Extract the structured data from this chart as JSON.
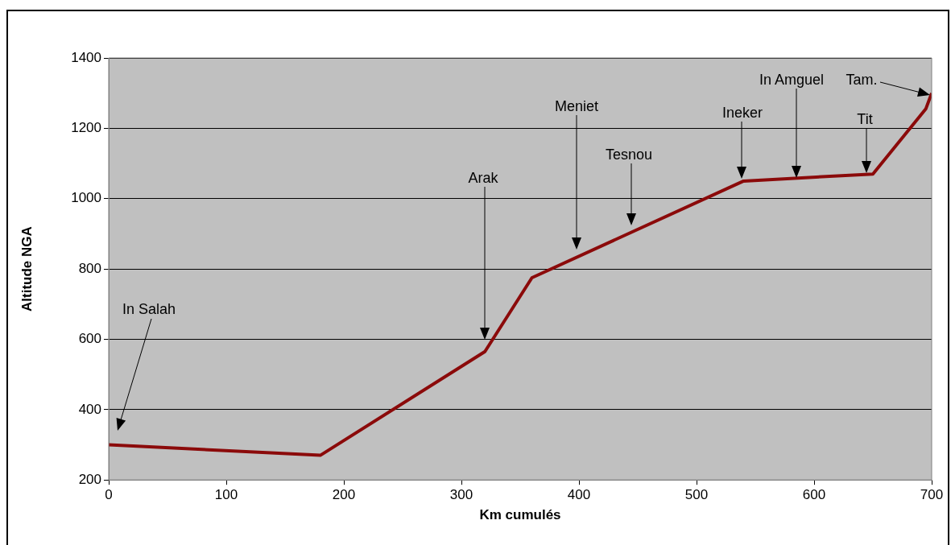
{
  "chart_data": {
    "type": "line",
    "xlabel": "Km cumulés",
    "ylabel": "Altitude NGA",
    "x": [
      0,
      180,
      320,
      360,
      540,
      650,
      695,
      700
    ],
    "series": [
      {
        "color": "#8b0a0a",
        "values": [
          300,
          270,
          565,
          775,
          1050,
          1070,
          1255,
          1300
        ]
      }
    ],
    "xlim": [
      0,
      700
    ],
    "xticks": [
      0,
      100,
      200,
      300,
      400,
      500,
      600,
      700
    ],
    "ylim": [
      200,
      1400
    ],
    "yticks": [
      200,
      400,
      600,
      800,
      1000,
      1200,
      1400
    ],
    "grid": "y",
    "legend": false,
    "marker": "none",
    "line_style": "solid",
    "annotations": [
      "In Salah",
      "Arak",
      "Meniet",
      "Tesnou",
      "Ineker",
      "In Amguel",
      "Tit",
      "Tam."
    ]
  }
}
